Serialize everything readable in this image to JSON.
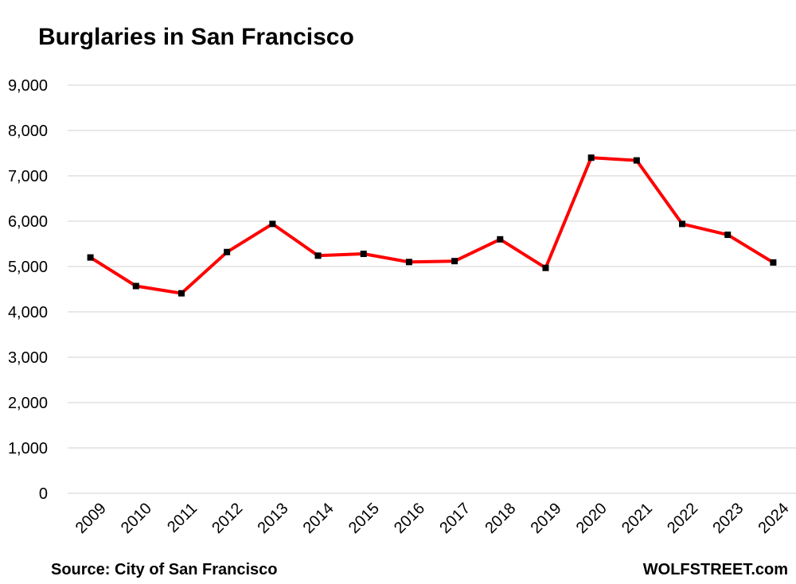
{
  "title": "Burglaries in San Francisco",
  "source": "Source: City of San Francisco",
  "brand": "WOLFSTREET.com",
  "colors": {
    "line": "#ff0000",
    "marker": "#000000",
    "grid": "#d9d9d9"
  },
  "chart_data": {
    "type": "line",
    "title": "Burglaries in San Francisco",
    "xlabel": "",
    "ylabel": "",
    "categories": [
      "2009",
      "2010",
      "2011",
      "2012",
      "2013",
      "2014",
      "2015",
      "2016",
      "2017",
      "2018",
      "2019",
      "2020",
      "2021",
      "2022",
      "2023",
      "2024"
    ],
    "series": [
      {
        "values": [
          5200,
          4570,
          4410,
          5320,
          5940,
          5240,
          5280,
          5100,
          5120,
          5600,
          4970,
          7400,
          7340,
          5940,
          5700,
          5090
        ]
      }
    ],
    "ylim": [
      0,
      9000
    ],
    "yticks": [
      0,
      1000,
      2000,
      3000,
      4000,
      5000,
      6000,
      7000,
      8000,
      9000
    ],
    "ytick_labels": [
      "0",
      "1,000",
      "2,000",
      "3,000",
      "4,000",
      "5,000",
      "6,000",
      "7,000",
      "8,000",
      "9,000"
    ],
    "grid": true,
    "legend": "none"
  }
}
